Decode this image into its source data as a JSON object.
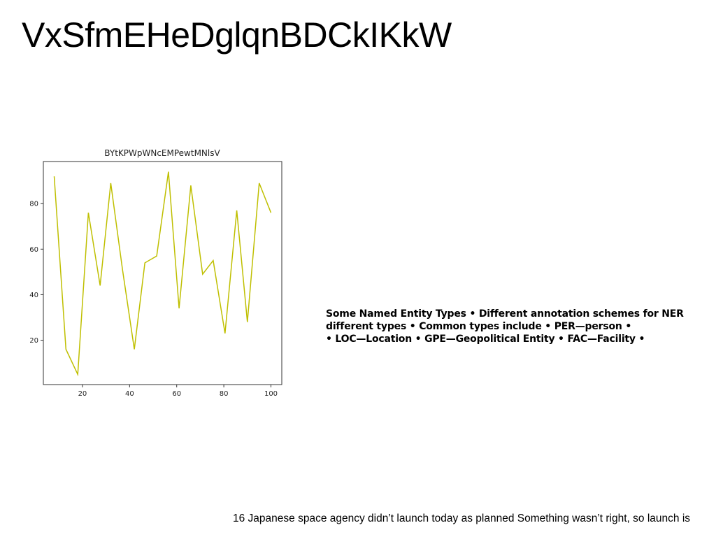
{
  "slide": {
    "title": "VxSfmEHeDglqnBDCkIKkW",
    "body_lines": [
      "Some Named Entity Types • Different annotation schemes for NER",
      "different types • Common types include • PER—person •",
      "• LOC—Location • GPE—Geopolitical Entity • FAC—Facility •"
    ],
    "footer": "16 Japanese space agency didn’t launch today as planned Something wasn’t right, so launch is"
  },
  "chart_data": {
    "type": "line",
    "title": "BYtKPWpWNcEMPewtMNlsV",
    "xlabel": "",
    "ylabel": "",
    "x": [
      8,
      13,
      18,
      22.5,
      27.5,
      32,
      37,
      42,
      46.5,
      51.5,
      56.5,
      61,
      66,
      71,
      75.5,
      80.5,
      85.5,
      90,
      95,
      100
    ],
    "series": [
      {
        "values": [
          92,
          16,
          5,
          76,
          44,
          89,
          51,
          16,
          54,
          57,
          94,
          34,
          88,
          49,
          55,
          23,
          77,
          28,
          89,
          76
        ],
        "color": "#bfbf00"
      }
    ],
    "xlim": [
      3.4,
      104.6
    ],
    "ylim": [
      0.5,
      98.5
    ],
    "xticks": [
      20,
      40,
      60,
      80,
      100
    ],
    "yticks": [
      20,
      40,
      60,
      80
    ],
    "grid": false,
    "legend": "none"
  }
}
